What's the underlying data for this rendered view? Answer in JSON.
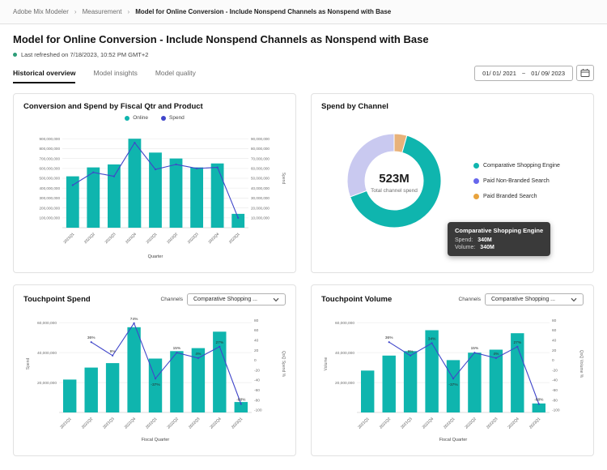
{
  "breadcrumb": {
    "items": [
      "Adobe Mix Modeler",
      "Measurement",
      "Model for Online Conversion - Include Nonspend Channels as Nonspend with Base"
    ],
    "separator": "›"
  },
  "header": {
    "title": "Model for Online Conversion - Include Nonspend Channels as Nonspend with Base",
    "last_refreshed": "Last refreshed on 7/18/2023, 10:52 PM GMT+2"
  },
  "tabs": [
    {
      "label": "Historical overview",
      "active": true
    },
    {
      "label": "Model insights",
      "active": false
    },
    {
      "label": "Model quality",
      "active": false
    }
  ],
  "date_range": {
    "start": "01/ 01/ 2021",
    "separator": "~",
    "end": "01/ 09/ 2023"
  },
  "colors": {
    "status_green": "#2D9D78",
    "teal": "#0FB5AE",
    "purple": "#4046CA",
    "lavender": "#C9C9F0",
    "orange": "#E8A33D"
  },
  "chart_data": [
    {
      "type": "bar+line",
      "title": "Conversion and Spend by Fiscal Qtr and Product",
      "categories": [
        "2021Q1",
        "2021Q2",
        "2021Q3",
        "2021Q4",
        "2022Q1",
        "2022Q2",
        "2022Q3",
        "2022Q4",
        "2023Q1"
      ],
      "series": [
        {
          "name": "Online",
          "type": "bar",
          "axis": "left",
          "color": "#0FB5AE",
          "values": [
            520000000,
            610000000,
            640000000,
            900000000,
            760000000,
            700000000,
            610000000,
            650000000,
            140000000
          ]
        },
        {
          "name": "Spend",
          "type": "line",
          "axis": "right",
          "color": "#4046CA",
          "values": [
            43000000,
            56000000,
            52000000,
            86000000,
            59000000,
            64000000,
            60000000,
            61000000,
            10000000
          ]
        }
      ],
      "xlabel": "Quarter",
      "ylabel_right": "Spend",
      "left_axis": {
        "min": 0,
        "max": 1000000000,
        "ticks": [
          100000000,
          200000000,
          300000000,
          400000000,
          500000000,
          600000000,
          700000000,
          800000000,
          900000000
        ]
      },
      "right_axis": {
        "min": 0,
        "max": 100000000,
        "ticks": [
          10000000,
          20000000,
          30000000,
          40000000,
          50000000,
          60000000,
          70000000,
          80000000,
          90000000
        ]
      },
      "grid": true,
      "legend_position": "top"
    },
    {
      "type": "donut",
      "title": "Spend by Channel",
      "center_value": "523M",
      "center_label": "Total channel spend",
      "total": 523,
      "slices": [
        {
          "label": "Comparative Shopping Engine",
          "value": 340,
          "color": "#0FB5AE",
          "legend_color": "#0FB5AE"
        },
        {
          "label": "Paid Non-Branded Search",
          "value": 160,
          "color": "#C9C9F0",
          "legend_color": "#6767EC"
        },
        {
          "label": "Paid Branded Search",
          "value": 23,
          "color": "#E8B27A",
          "legend_color": "#E8A33D"
        }
      ],
      "legend_position": "right",
      "tooltip": {
        "title": "Comparative Shopping Engine",
        "rows": [
          {
            "label": "Spend:",
            "value": "340M"
          },
          {
            "label": "Volume:",
            "value": "340M"
          }
        ]
      }
    },
    {
      "type": "bar+line",
      "title": "Touchpoint Spend",
      "channels_label": "Channels",
      "channel_selected": "Comparative Shopping ...",
      "categories": [
        "2021Q1",
        "2021Q2",
        "2021Q3",
        "2021Q4",
        "2022Q1",
        "2022Q2",
        "2022Q3",
        "2022Q4",
        "2023Q1"
      ],
      "series": [
        {
          "name": "Spend",
          "type": "bar",
          "axis": "left",
          "color": "#0FB5AE",
          "values": [
            22000000,
            30000000,
            33000000,
            57000000,
            36000000,
            41000000,
            43000000,
            54000000,
            7000000
          ]
        },
        {
          "name": "QoQ % change",
          "type": "line",
          "axis": "right",
          "color": "#4046CA",
          "values": [
            null,
            36,
            9,
            74,
            -37,
            15,
            4,
            27,
            -88
          ]
        }
      ],
      "point_labels": [
        "",
        "36%",
        "9%",
        "74%",
        "-37%",
        "15%",
        "4%",
        "27%",
        "-88%"
      ],
      "xlabel": "Fiscal Quarter",
      "ylabel_left": "Spend",
      "ylabel_right": "QoQ Spend %",
      "left_axis": {
        "min": 0,
        "max": 65000000,
        "ticks": [
          20000000,
          40000000,
          60000000
        ]
      },
      "right_axis": {
        "min": -105,
        "max": 90,
        "ticks": [
          80,
          60,
          40,
          20,
          0,
          -20,
          -40,
          -60,
          -80,
          -100
        ]
      },
      "grid": true,
      "legend_position": "none"
    },
    {
      "type": "bar+line",
      "title": "Touchpoint Volume",
      "channels_label": "Channels",
      "channel_selected": "Comparative Shopping ...",
      "categories": [
        "2021Q1",
        "2021Q2",
        "2021Q3",
        "2021Q4",
        "2022Q1",
        "2022Q2",
        "2022Q3",
        "2022Q4",
        "2023Q1"
      ],
      "series": [
        {
          "name": "Volume",
          "type": "bar",
          "axis": "left",
          "color": "#0FB5AE",
          "values": [
            28000000,
            38000000,
            41000000,
            55000000,
            35000000,
            40000000,
            42000000,
            53000000,
            6000000
          ]
        },
        {
          "name": "QoQ % change",
          "type": "line",
          "axis": "right",
          "color": "#4046CA",
          "values": [
            null,
            36,
            9,
            34,
            -37,
            15,
            4,
            27,
            -88
          ]
        }
      ],
      "point_labels": [
        "",
        "36%",
        "9%",
        "34%",
        "-37%",
        "15%",
        "4%",
        "27%",
        "-88%"
      ],
      "xlabel": "Fiscal Quarter",
      "ylabel_left": "Volume",
      "ylabel_right": "QoQ Volume %",
      "left_axis": {
        "min": 0,
        "max": 65000000,
        "ticks": [
          20000000,
          40000000,
          60000000
        ]
      },
      "right_axis": {
        "min": -105,
        "max": 90,
        "ticks": [
          80,
          60,
          40,
          20,
          0,
          -20,
          -40,
          -60,
          -80,
          -100
        ]
      },
      "grid": true,
      "legend_position": "none"
    }
  ]
}
